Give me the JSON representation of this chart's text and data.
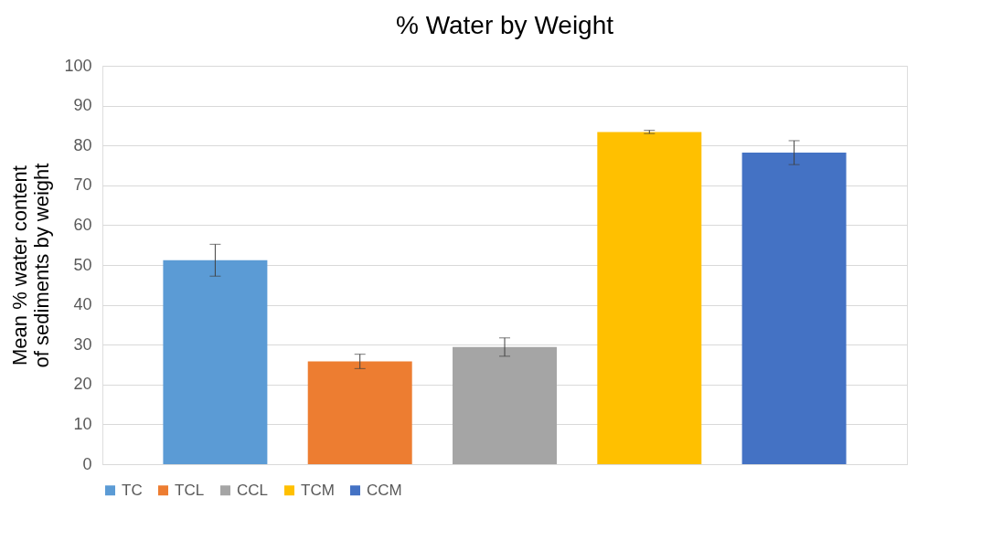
{
  "chart_data": {
    "type": "bar",
    "title": "% Water by Weight",
    "ylabel": "Mean % water content of sediments by weight",
    "categories": [
      null
    ],
    "series": [
      {
        "name": "TC",
        "color": "#5b9bd5",
        "values": [
          51.2
        ],
        "errors": [
          4.0
        ]
      },
      {
        "name": "TCL",
        "color": "#ed7d31",
        "values": [
          25.8
        ],
        "errors": [
          1.8
        ]
      },
      {
        "name": "CCL",
        "color": "#a5a5a5",
        "values": [
          29.4
        ],
        "errors": [
          2.3
        ]
      },
      {
        "name": "TCM",
        "color": "#ffc000",
        "values": [
          83.4
        ],
        "errors": [
          0.4
        ]
      },
      {
        "name": "CCM",
        "color": "#4472c4",
        "values": [
          78.2
        ],
        "errors": [
          3.0
        ]
      }
    ],
    "ylim": [
      0,
      100
    ],
    "yticks": [
      0,
      10,
      20,
      30,
      40,
      50,
      60,
      70,
      80,
      90,
      100
    ],
    "grid": "y",
    "legend": "bottom",
    "tick_labels": "y"
  }
}
